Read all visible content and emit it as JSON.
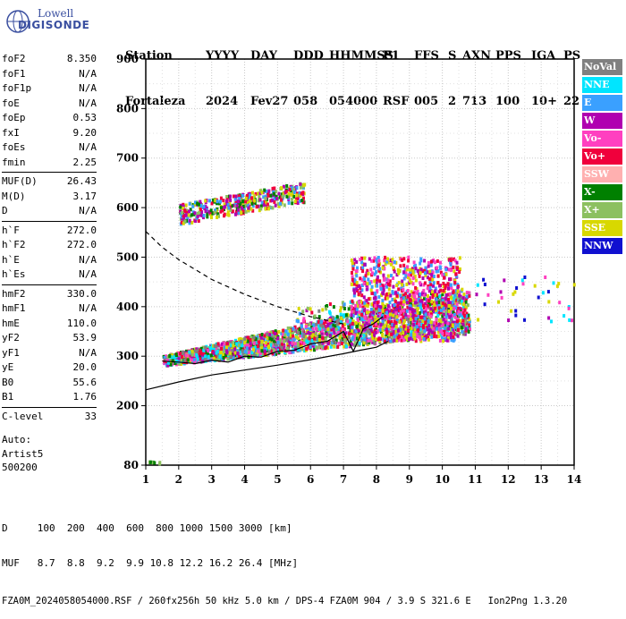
{
  "logo": {
    "line1": "Lowell",
    "line2": "DIGISONDE"
  },
  "header": {
    "row1": [
      "Station",
      "YYYY",
      "DAY",
      "DDD",
      "HHMMSS",
      "P1",
      "FFS",
      "S",
      "AXN",
      "PPS",
      "IGA",
      "PS"
    ],
    "row2": [
      "Fortaleza",
      "2024",
      "Fev27",
      "058",
      "054000",
      "RSF",
      "005",
      "2",
      "713",
      "100",
      "10+",
      "22"
    ]
  },
  "params": {
    "groups": [
      [
        [
          "foF2",
          "8.350"
        ],
        [
          "foF1",
          "N/A"
        ],
        [
          "foF1p",
          "N/A"
        ],
        [
          "foE",
          "N/A"
        ],
        [
          "foEp",
          "0.53"
        ],
        [
          "fxI",
          "9.20"
        ],
        [
          "foEs",
          "N/A"
        ],
        [
          "fmin",
          "2.25"
        ]
      ],
      [
        [
          "MUF(D)",
          "26.43"
        ],
        [
          "M(D)",
          "3.17"
        ],
        [
          "D",
          "N/A"
        ]
      ],
      [
        [
          "h`F",
          "272.0"
        ],
        [
          "h`F2",
          "272.0"
        ],
        [
          "h`E",
          "N/A"
        ],
        [
          "h`Es",
          "N/A"
        ]
      ],
      [
        [
          "hmF2",
          "330.0"
        ],
        [
          "hmF1",
          "N/A"
        ],
        [
          "hmE",
          "110.0"
        ],
        [
          "yF2",
          "53.9"
        ],
        [
          "yF1",
          "N/A"
        ],
        [
          "yE",
          "20.0"
        ],
        [
          "B0",
          "55.6"
        ],
        [
          "B1",
          "1.76"
        ]
      ],
      [
        [
          "C-level",
          "33"
        ]
      ]
    ]
  },
  "auto": {
    "line1": "Auto:",
    "line2": "Artist5",
    "line3": "500200"
  },
  "footer": {
    "d_row": "D     100  200  400  600  800 1000 1500 3000 [km]",
    "muf_row": "MUF   8.7  8.8  9.2  9.9 10.8 12.2 16.2 26.4 [MHz]",
    "info": "FZA0M_2024058054000.RSF / 260fx256h 50 kHz 5.0 km / DPS-4 FZA0M 904 / 3.9 S 321.6 E   Ion2Png 1.3.20"
  },
  "legend": [
    {
      "label": "NoVal",
      "color": "#808080"
    },
    {
      "label": "NNE",
      "color": "#00e5ff"
    },
    {
      "label": "E",
      "color": "#3aa0ff"
    },
    {
      "label": "W",
      "color": "#b000b0"
    },
    {
      "label": "Vo-",
      "color": "#ff40c0"
    },
    {
      "label": "Vo+",
      "color": "#f0003c"
    },
    {
      "label": "SSW",
      "color": "#ffb0b0"
    },
    {
      "label": "X-",
      "color": "#008000"
    },
    {
      "label": "X+",
      "color": "#8cc060"
    },
    {
      "label": "SSE",
      "color": "#d8d800"
    },
    {
      "label": "NNW",
      "color": "#1010d0"
    }
  ],
  "chart_data": {
    "type": "scatter",
    "xlim": [
      1,
      14
    ],
    "ylim": [
      80,
      900
    ],
    "x_ticks": [
      1,
      2,
      3,
      4,
      5,
      6,
      7,
      8,
      9,
      10,
      11,
      12,
      13,
      14
    ],
    "y_ticks": [
      80,
      200,
      300,
      400,
      500,
      600,
      700,
      800,
      900
    ],
    "grid": true,
    "legend_position": "right",
    "trace_clusters": [
      {
        "name": "F-layer ordinary",
        "x_range": [
          1.5,
          10.8
        ],
        "h_range": [
          275,
          420
        ],
        "colors": [
          "#f0003c",
          "#ff40c0",
          "#b000b0",
          "#3aa0ff",
          "#8cc060",
          "#008000",
          "#00e5ff",
          "#d8d800",
          "#808080"
        ]
      },
      {
        "name": "F-layer upper",
        "x_range": [
          7.2,
          10.5
        ],
        "h_range": [
          330,
          500
        ],
        "colors": [
          "#f0003c",
          "#b000b0",
          "#ff40c0",
          "#3aa0ff",
          "#d8d800"
        ]
      },
      {
        "name": "second hop",
        "x_range": [
          2.0,
          5.8
        ],
        "h_range": [
          570,
          665
        ],
        "colors": [
          "#f0003c",
          "#b000b0",
          "#8cc060",
          "#008000",
          "#3aa0ff",
          "#d8d800"
        ]
      },
      {
        "name": "low frequency",
        "x_range": [
          1.05,
          1.45
        ],
        "h_range": [
          82,
          86
        ],
        "colors": [
          "#008000",
          "#8cc060"
        ]
      },
      {
        "name": "scattered high",
        "x_range": [
          11.0,
          14.0
        ],
        "h_range": [
          370,
          460
        ],
        "colors": [
          "#b000b0",
          "#ff40c0",
          "#1010d0",
          "#00e5ff",
          "#d8d800"
        ]
      }
    ],
    "profile_curve": {
      "x": [
        1.0,
        2.0,
        3.0,
        4.0,
        5.0,
        6.0,
        7.0,
        7.5,
        8.0,
        8.35
      ],
      "h": [
        232,
        248,
        262,
        272,
        282,
        293,
        305,
        312,
        318,
        330
      ]
    },
    "dashed_curve": {
      "x": [
        1.0,
        1.5,
        2.0,
        2.5,
        3.0,
        3.5,
        4.0,
        5.0,
        6.0,
        7.0
      ],
      "h": [
        552,
        520,
        495,
        475,
        455,
        440,
        425,
        400,
        380,
        365
      ]
    },
    "trace_line": {
      "x": [
        1.5,
        2.0,
        2.5,
        3.0,
        3.5,
        4.0,
        4.5,
        5.0,
        5.5,
        6.0,
        6.5,
        7.0,
        7.3,
        7.6,
        7.9,
        8.2
      ],
      "h": [
        290,
        288,
        285,
        292,
        288,
        300,
        298,
        310,
        312,
        325,
        330,
        350,
        310,
        355,
        365,
        380
      ]
    }
  }
}
